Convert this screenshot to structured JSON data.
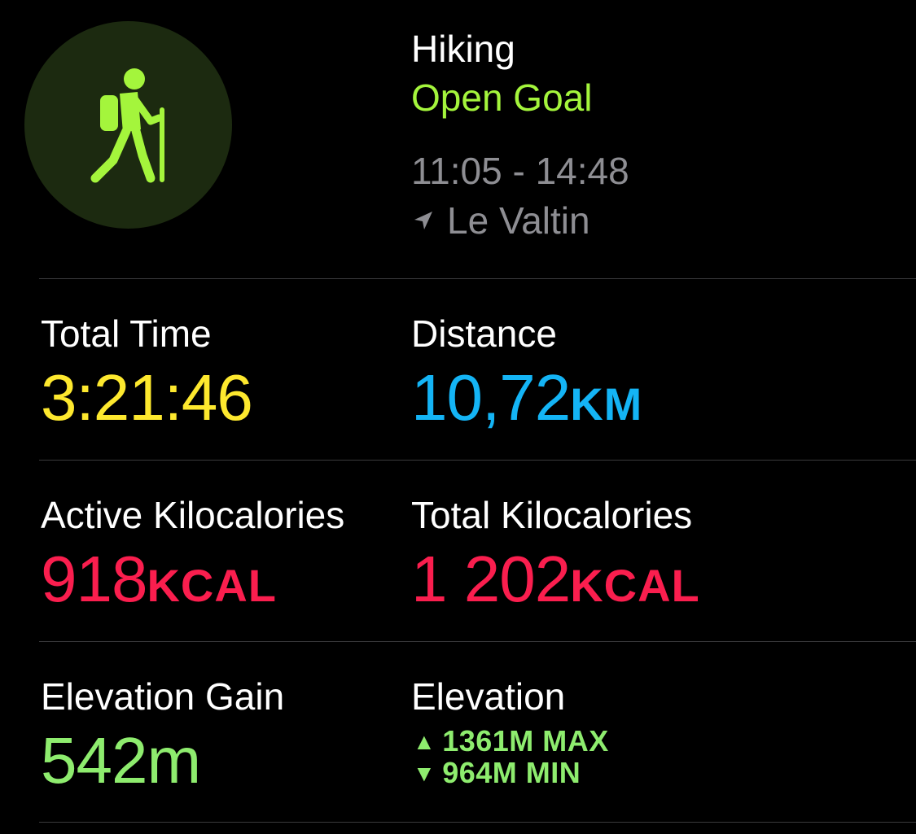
{
  "header": {
    "activity_icon": "hiking-person-icon",
    "title": "Hiking",
    "goal": "Open Goal",
    "time_range": "11:05 - 14:48",
    "location_icon": "location-arrow-icon",
    "location": "Le Valtin"
  },
  "metrics": {
    "total_time": {
      "label": "Total Time",
      "value": "3:21:46"
    },
    "distance": {
      "label": "Distance",
      "value": "10,72",
      "unit": "KM"
    },
    "active_kcal": {
      "label": "Active Kilocalories",
      "value": "918",
      "unit": "KCAL"
    },
    "total_kcal": {
      "label": "Total Kilocalories",
      "value": "1 202",
      "unit": "KCAL"
    },
    "elevation_gain": {
      "label": "Elevation Gain",
      "value": "542m"
    },
    "elevation": {
      "label": "Elevation",
      "max_arrow": "▲",
      "max": "1361M MAX",
      "min_arrow": "▼",
      "min": "964M MIN"
    }
  },
  "colors": {
    "background": "#000000",
    "activity_green": "#a4f53c",
    "circle_bg": "#1c2a10",
    "time_yellow": "#fde82e",
    "distance_blue": "#14b4f5",
    "kcal_red": "#fa1e4e",
    "elevation_green": "#8eec6e",
    "secondary_gray": "#8e8e93",
    "divider": "#3a3a3c"
  }
}
